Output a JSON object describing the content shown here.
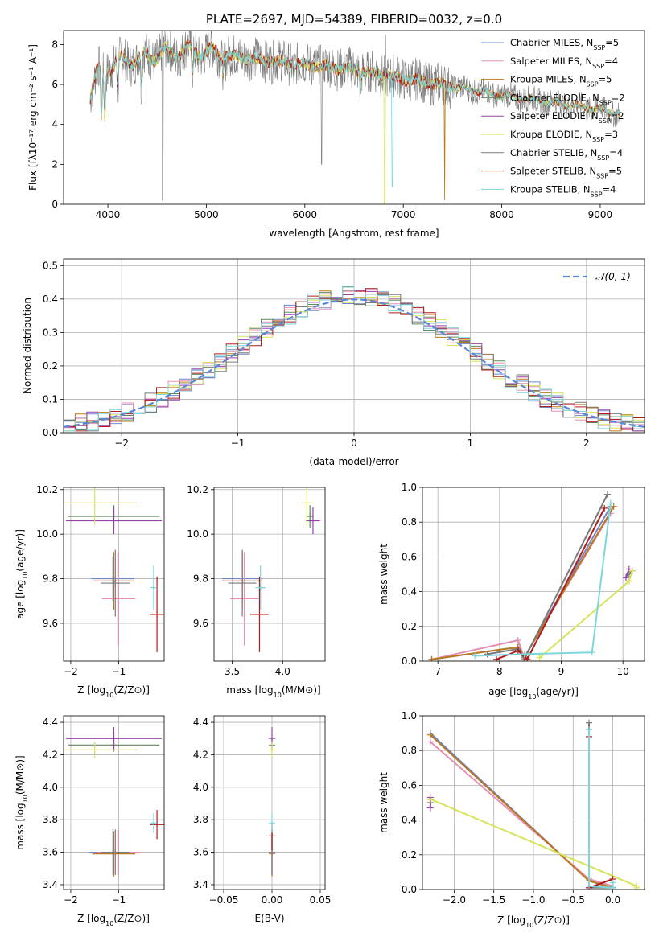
{
  "colors": {
    "c1": "#6f86c8",
    "c2": "#e68fb5",
    "c3": "#b9781d",
    "c4": "#5e8a5f",
    "c5": "#9b3fb0",
    "c6": "#d7e35a",
    "c7": "#7a7a7a",
    "c8": "#b01c1c",
    "c9": "#7dd6dc",
    "norm": "#5b87d9",
    "grid": "#b0b0b0"
  },
  "chart_data": [
    {
      "type": "line",
      "title": "PLATE=2697, MJD=54389, FIBERID=0032, z=0.0",
      "xlabel": "wavelength [Angstrom, rest frame]",
      "ylabel": "Flux [fλ10⁻¹⁷ erg cm⁻² s⁻¹ A⁻¹]",
      "xlim": [
        3550,
        9450
      ],
      "ylim": [
        0,
        8.7
      ],
      "xticks": [
        4000,
        5000,
        6000,
        7000,
        8000,
        9000
      ],
      "xtick_labels": [
        "4000",
        "5000",
        "6000",
        "7000",
        "8000",
        "9000"
      ],
      "yticks": [
        0,
        2,
        4,
        6,
        8
      ],
      "ytick_labels": [
        "0",
        "2",
        "4",
        "6",
        "8"
      ],
      "grid": false,
      "legend_position": "top-right",
      "continuum": {
        "x": [
          3820,
          3900,
          4000,
          4100,
          4300,
          4500,
          4800,
          5000,
          5500,
          6000,
          6500,
          7000,
          7500,
          8000,
          8500,
          9000,
          9200
        ],
        "y": [
          5.4,
          6.6,
          6.9,
          7.1,
          7.3,
          7.5,
          7.7,
          7.6,
          7.25,
          7.0,
          6.75,
          6.3,
          5.9,
          5.45,
          5.1,
          4.75,
          4.5
        ]
      },
      "legend": [
        "Chabrier MILES, N_SSP=5",
        "Salpeter MILES, N_SSP=4",
        "Kroupa MILES, N_SSP=5",
        "Chabrier ELODIE, N_SSP=2",
        "Salpeter ELODIE, N_SSP=2",
        "Kroupa ELODIE, N_SSP=3",
        "Chabrier STELIB, N_SSP=4",
        "Salpeter STELIB, N_SSP=5",
        "Kroupa STELIB, N_SSP=4"
      ],
      "legend_labels": [
        {
          "pre": "Chabrier MILES, N",
          "sub": "SSP",
          "post": "=5"
        },
        {
          "pre": "Salpeter MILES, N",
          "sub": "SSP",
          "post": "=4"
        },
        {
          "pre": "Kroupa MILES, N",
          "sub": "SSP",
          "post": "=5"
        },
        {
          "pre": "Chabrier ELODIE, N",
          "sub": "SSP",
          "post": "=2"
        },
        {
          "pre": "Salpeter ELODIE, N",
          "sub": "SSP",
          "post": "=2"
        },
        {
          "pre": "Kroupa ELODIE, N",
          "sub": "SSP",
          "post": "=3"
        },
        {
          "pre": "Chabrier STELIB, N",
          "sub": "SSP",
          "post": "=4"
        },
        {
          "pre": "Salpeter STELIB, N",
          "sub": "SSP",
          "post": "=5"
        },
        {
          "pre": "Kroupa STELIB, N",
          "sub": "SSP",
          "post": "=4"
        }
      ]
    },
    {
      "type": "line",
      "xlabel": "(data-model)/error",
      "ylabel": "Normed distribution",
      "xlim": [
        -2.5,
        2.5
      ],
      "ylim": [
        0,
        0.52
      ],
      "xticks": [
        -2,
        -1,
        0,
        1,
        2
      ],
      "xtick_labels": [
        "−2",
        "−1",
        "0",
        "1",
        "2"
      ],
      "yticks": [
        0,
        0.1,
        0.2,
        0.3,
        0.4,
        0.5
      ],
      "ytick_labels": [
        "0.0",
        "0.1",
        "0.2",
        "0.3",
        "0.4",
        "0.5"
      ],
      "grid": true,
      "legend_position": "top-right",
      "legend": [
        "𝒩(0, 1)"
      ],
      "bin_width": 0.1,
      "series_count": 9
    },
    {
      "type": "scatter",
      "xlabel": "Z [log10(Z/Z⊙)]",
      "ylabel": "age  [log10(age/yr)]",
      "xlim": [
        -2.15,
        -0.05
      ],
      "ylim": [
        9.43,
        10.21
      ],
      "xticks": [
        -2,
        -1
      ],
      "xtick_labels": [
        "−2",
        "−1"
      ],
      "yticks": [
        9.6,
        9.8,
        10.0,
        10.2
      ],
      "ytick_labels": [
        "9.6",
        "9.8",
        "10.0",
        "10.2"
      ],
      "grid": true,
      "points": [
        {
          "s": 0,
          "x": -1.12,
          "y": 9.8,
          "xe": 0.45,
          "ye": 0.1
        },
        {
          "s": 1,
          "x": -1.0,
          "y": 9.71,
          "xe": 0.35,
          "ye": 0.21
        },
        {
          "s": 2,
          "x": -1.1,
          "y": 9.79,
          "xe": 0.42,
          "ye": 0.13
        },
        {
          "s": 3,
          "x": -1.1,
          "y": 10.08,
          "xe": 0.95,
          "ye": 0.05
        },
        {
          "s": 4,
          "x": -1.1,
          "y": 10.06,
          "xe": 1.0,
          "ye": 0.06
        },
        {
          "s": 5,
          "x": -1.5,
          "y": 10.14,
          "xe": 0.9,
          "ye": 0.1
        },
        {
          "s": 6,
          "x": -1.07,
          "y": 9.78,
          "xe": 0.3,
          "ye": 0.15
        },
        {
          "s": 7,
          "x": -0.2,
          "y": 9.64,
          "xe": 0.15,
          "ye": 0.17
        },
        {
          "s": 8,
          "x": -0.27,
          "y": 9.76,
          "xe": 0.04,
          "ye": 0.1
        }
      ]
    },
    {
      "type": "scatter",
      "xlabel": "mass [log10(M/M⊙)]",
      "xlim": [
        3.32,
        4.42
      ],
      "ylim": [
        9.43,
        10.21
      ],
      "xticks": [
        3.5,
        4.0
      ],
      "xtick_labels": [
        "3.5",
        "4.0"
      ],
      "yticks": [
        9.6,
        9.8,
        10.0,
        10.2
      ],
      "ytick_labels": [
        "9.6",
        "9.8",
        "10.0",
        "10.2"
      ],
      "grid": true,
      "points": [
        {
          "s": 0,
          "x": 3.6,
          "y": 9.8,
          "xe": 0.2,
          "ye": 0.1
        },
        {
          "s": 1,
          "x": 3.62,
          "y": 9.71,
          "xe": 0.14,
          "ye": 0.21
        },
        {
          "s": 2,
          "x": 3.6,
          "y": 9.79,
          "xe": 0.2,
          "ye": 0.13
        },
        {
          "s": 3,
          "x": 4.27,
          "y": 10.08,
          "xe": 0.03,
          "ye": 0.05
        },
        {
          "s": 4,
          "x": 4.3,
          "y": 10.06,
          "xe": 0.07,
          "ye": 0.06
        },
        {
          "s": 5,
          "x": 4.24,
          "y": 10.14,
          "xe": 0.05,
          "ye": 0.1
        },
        {
          "s": 6,
          "x": 3.6,
          "y": 9.78,
          "xe": 0.14,
          "ye": 0.15
        },
        {
          "s": 7,
          "x": 3.77,
          "y": 9.64,
          "xe": 0.09,
          "ye": 0.17
        },
        {
          "s": 8,
          "x": 3.78,
          "y": 9.76,
          "xe": 0.05,
          "ye": 0.1
        }
      ]
    },
    {
      "type": "line",
      "xlabel": "age  [log10(age/yr)]",
      "ylabel": "mass weight",
      "xlim": [
        6.75,
        10.35
      ],
      "ylim": [
        0,
        1.0
      ],
      "xticks": [
        7,
        8,
        9,
        10
      ],
      "xtick_labels": [
        "7",
        "8",
        "9",
        "10"
      ],
      "yticks": [
        0,
        0.2,
        0.4,
        0.6,
        0.8,
        1.0
      ],
      "ytick_labels": [
        "0.0",
        "0.2",
        "0.4",
        "0.6",
        "0.8",
        "1.0"
      ],
      "grid": true,
      "series": [
        {
          "s": 0,
          "x": [
            6.9,
            8.3,
            8.4,
            9.8
          ],
          "y": [
            0.01,
            0.08,
            0.02,
            0.89
          ]
        },
        {
          "s": 1,
          "x": [
            6.9,
            8.3,
            8.4,
            9.8
          ],
          "y": [
            0.01,
            0.12,
            0.02,
            0.85
          ]
        },
        {
          "s": 2,
          "x": [
            6.9,
            8.3,
            8.4,
            9.85
          ],
          "y": [
            0.01,
            0.08,
            0.02,
            0.89
          ]
        },
        {
          "s": 3,
          "x": [
            10.1,
            10.15
          ],
          "y": [
            0.5,
            0.52
          ]
        },
        {
          "s": 4,
          "x": [
            10.05,
            10.1
          ],
          "y": [
            0.48,
            0.53
          ]
        },
        {
          "s": 5,
          "x": [
            8.65,
            10.1,
            10.15
          ],
          "y": [
            0.02,
            0.46,
            0.52
          ]
        },
        {
          "s": 6,
          "x": [
            7.8,
            8.3,
            8.4,
            9.75
          ],
          "y": [
            0.04,
            0.07,
            0.01,
            0.96
          ]
        },
        {
          "s": 7,
          "x": [
            7.95,
            8.3,
            8.45,
            9.7
          ],
          "y": [
            0.01,
            0.06,
            0.01,
            0.88
          ]
        },
        {
          "s": 8,
          "x": [
            7.6,
            8.4,
            9.5,
            9.8
          ],
          "y": [
            0.03,
            0.04,
            0.05,
            0.91
          ]
        }
      ]
    },
    {
      "type": "scatter",
      "xlabel": "Z [log10(Z/Z⊙)]",
      "ylabel": "mass [log10(M/M⊙)]",
      "xlim": [
        -2.15,
        -0.05
      ],
      "ylim": [
        3.37,
        4.44
      ],
      "xticks": [
        -2,
        -1
      ],
      "xtick_labels": [
        "−2",
        "−1"
      ],
      "yticks": [
        3.4,
        3.6,
        3.8,
        4.0,
        4.2,
        4.4
      ],
      "ytick_labels": [
        "3.4",
        "3.6",
        "3.8",
        "4.0",
        "4.2",
        "4.4"
      ],
      "grid": true,
      "points": [
        {
          "s": 0,
          "x": -1.12,
          "y": 3.6,
          "xe": 0.5,
          "ye": 0.14
        },
        {
          "s": 1,
          "x": -1.0,
          "y": 3.6,
          "xe": 0.45,
          "ye": 0.14
        },
        {
          "s": 2,
          "x": -1.1,
          "y": 3.59,
          "xe": 0.45,
          "ye": 0.14
        },
        {
          "s": 3,
          "x": -1.1,
          "y": 4.26,
          "xe": 0.95,
          "ye": 0.04
        },
        {
          "s": 4,
          "x": -1.1,
          "y": 4.3,
          "xe": 1.0,
          "ye": 0.07
        },
        {
          "s": 5,
          "x": -1.5,
          "y": 4.23,
          "xe": 0.9,
          "ye": 0.05
        },
        {
          "s": 6,
          "x": -1.07,
          "y": 3.6,
          "xe": 0.3,
          "ye": 0.14
        },
        {
          "s": 7,
          "x": -0.2,
          "y": 3.77,
          "xe": 0.15,
          "ye": 0.09
        },
        {
          "s": 8,
          "x": -0.27,
          "y": 3.78,
          "xe": 0.04,
          "ye": 0.06
        }
      ]
    },
    {
      "type": "scatter",
      "xlabel": "E(B-V)",
      "xlim": [
        -0.06,
        0.055
      ],
      "ylim": [
        3.37,
        4.44
      ],
      "xticks": [
        -0.05,
        0.0,
        0.05
      ],
      "xtick_labels": [
        "−0.05",
        "0.00",
        "0.05"
      ],
      "yticks": [
        3.4,
        3.6,
        3.8,
        4.0,
        4.2,
        4.4
      ],
      "ytick_labels": [
        "3.4",
        "3.6",
        "3.8",
        "4.0",
        "4.2",
        "4.4"
      ],
      "grid": true,
      "points": [
        {
          "s": 0,
          "x": 0,
          "y": 3.6,
          "xe": 0,
          "ye": 0.14
        },
        {
          "s": 1,
          "x": 0,
          "y": 3.6,
          "xe": 0,
          "ye": 0.14
        },
        {
          "s": 2,
          "x": 0,
          "y": 3.59,
          "xe": 0,
          "ye": 0.14
        },
        {
          "s": 3,
          "x": 0,
          "y": 4.26,
          "xe": 0,
          "ye": 0.04
        },
        {
          "s": 4,
          "x": 0,
          "y": 4.3,
          "xe": 0,
          "ye": 0.07
        },
        {
          "s": 5,
          "x": 0,
          "y": 4.23,
          "xe": 0,
          "ye": 0.05
        },
        {
          "s": 6,
          "x": 0,
          "y": 3.6,
          "xe": 0,
          "ye": 0.14
        },
        {
          "s": 7,
          "x": 0,
          "y": 3.7,
          "xe": 0,
          "ye": 0.09
        },
        {
          "s": 8,
          "x": 0,
          "y": 3.78,
          "xe": 0,
          "ye": 0.06
        }
      ]
    },
    {
      "type": "line",
      "xlabel": "Z [log10(Z/Z⊙)]",
      "ylabel": "mass weight",
      "xlim": [
        -2.4,
        0.4
      ],
      "ylim": [
        0,
        1.0
      ],
      "xticks": [
        -2.0,
        -1.5,
        -1.0,
        -0.5,
        0.0
      ],
      "xtick_labels": [
        "−2.0",
        "−1.5",
        "−1.0",
        "−0.5",
        "0.0"
      ],
      "yticks": [
        0,
        0.2,
        0.4,
        0.6,
        0.8,
        1.0
      ],
      "ytick_labels": [
        "0.0",
        "0.2",
        "0.4",
        "0.6",
        "0.8",
        "1.0"
      ],
      "grid": true,
      "series": [
        {
          "s": 0,
          "x": [
            -2.3,
            -0.3,
            0.0
          ],
          "y": [
            0.9,
            0.05,
            0.01
          ]
        },
        {
          "s": 1,
          "x": [
            -2.3,
            -0.3,
            0.0
          ],
          "y": [
            0.85,
            0.06,
            0.02
          ]
        },
        {
          "s": 2,
          "x": [
            -2.3,
            -0.3,
            0.0
          ],
          "y": [
            0.89,
            0.05,
            0.01
          ]
        },
        {
          "s": 3,
          "x": [
            -2.3,
            -2.3
          ],
          "y": [
            0.5,
            0.52
          ]
        },
        {
          "s": 4,
          "x": [
            -2.3,
            -2.3
          ],
          "y": [
            0.47,
            0.53
          ]
        },
        {
          "s": 5,
          "x": [
            -2.3,
            0.3,
            0.3
          ],
          "y": [
            0.52,
            0.02,
            0.01
          ]
        },
        {
          "s": 6,
          "x": [
            -0.3,
            -0.3,
            0.0
          ],
          "y": [
            0.96,
            0.01,
            0.01
          ]
        },
        {
          "s": 7,
          "x": [
            -0.3,
            -0.3,
            0.0
          ],
          "y": [
            0.88,
            0.01,
            0.06
          ]
        },
        {
          "s": 8,
          "x": [
            -0.3,
            -0.3,
            0.0,
            0.0
          ],
          "y": [
            0.92,
            0.02,
            0.01,
            0.04
          ]
        }
      ]
    }
  ]
}
